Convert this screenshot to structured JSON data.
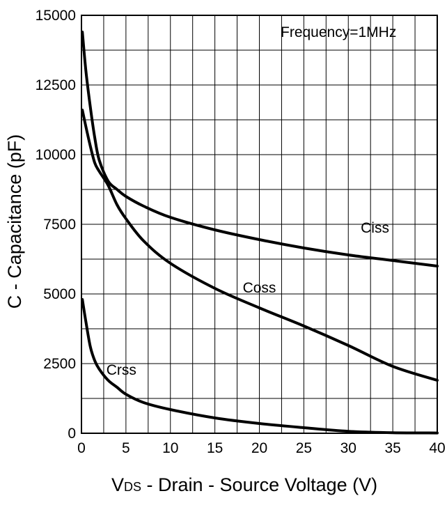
{
  "chart_data": {
    "type": "line",
    "xlabel": {
      "main": "V",
      "subscript": "DS",
      "rest": " - Drain - Source Voltage (V)"
    },
    "ylabel": "C - Capacitance (pF)",
    "annotation": "Frequency=1MHz",
    "xlim": [
      0,
      40
    ],
    "ylim": [
      0,
      15000
    ],
    "grid": true,
    "x_ticks": [
      0,
      5,
      10,
      15,
      20,
      25,
      30,
      35,
      40
    ],
    "y_ticks": [
      0,
      2500,
      5000,
      7500,
      10000,
      12500,
      15000
    ],
    "x_tick_labels": [
      "0",
      "5",
      "10",
      "15",
      "20",
      "25",
      "30",
      "35",
      "40"
    ],
    "y_tick_labels": [
      "0",
      "2500",
      "5000",
      "7500",
      "10000",
      "12500",
      "15000"
    ],
    "colors": {
      "line": "#000000",
      "grid": "#000000",
      "background": "#ffffff"
    },
    "series": [
      {
        "name": "Ciss",
        "x": [
          0.1,
          0.5,
          1,
          1.5,
          2,
          3,
          4,
          5,
          7,
          10,
          15,
          20,
          25,
          30,
          35,
          40
        ],
        "y": [
          14400,
          13000,
          11700,
          10600,
          9800,
          9050,
          8750,
          8500,
          8150,
          7750,
          7300,
          6950,
          6650,
          6400,
          6200,
          6000
        ]
      },
      {
        "name": "Coss",
        "x": [
          0.1,
          0.5,
          1,
          1.5,
          2,
          3,
          4,
          5,
          7,
          10,
          15,
          20,
          25,
          30,
          35,
          40
        ],
        "y": [
          11600,
          11000,
          10300,
          9700,
          9400,
          8900,
          8200,
          7700,
          6900,
          6100,
          5200,
          4500,
          3850,
          3150,
          2400,
          1900
        ]
      },
      {
        "name": "Crss",
        "x": [
          0.1,
          0.5,
          1,
          1.5,
          2,
          3,
          4,
          5,
          7,
          10,
          15,
          20,
          25,
          30,
          35,
          40
        ],
        "y": [
          4800,
          4000,
          3100,
          2600,
          2300,
          1900,
          1650,
          1400,
          1100,
          850,
          550,
          350,
          200,
          70,
          20,
          10
        ]
      }
    ]
  }
}
